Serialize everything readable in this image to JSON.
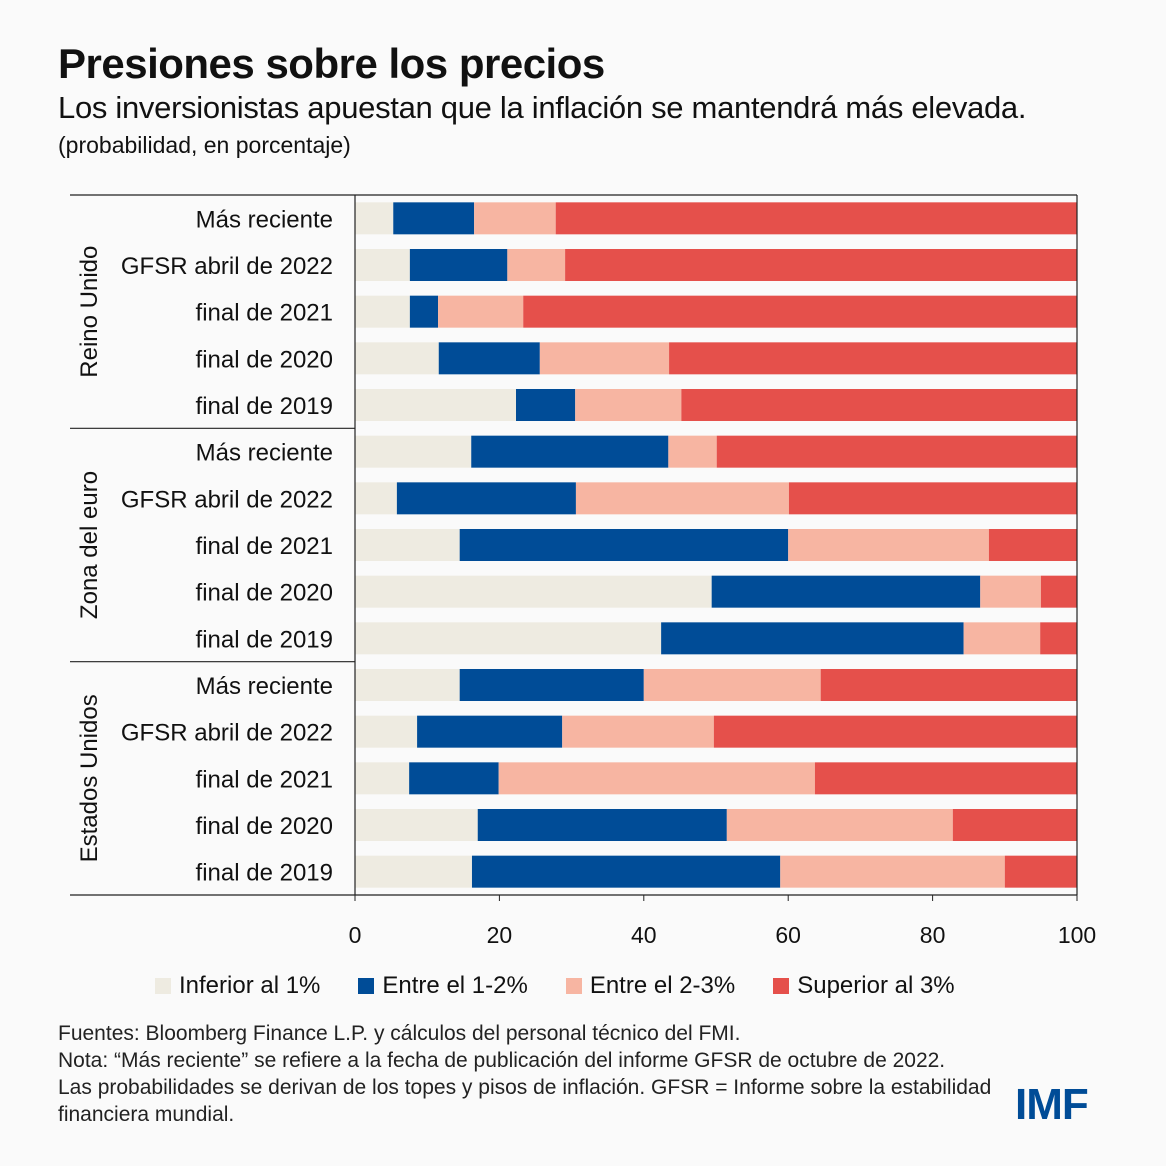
{
  "title": "Presiones sobre los precios",
  "subtitle": "Los inversionistas apuestan que la inflación se mantendrá más elevada.",
  "unit": "(probabilidad, en porcentaje)",
  "chart_data": {
    "type": "stacked-horizontal-bar",
    "xlim": [
      0,
      100
    ],
    "xticks": [
      "0",
      "20",
      "40",
      "60",
      "80",
      "100"
    ],
    "grid": false,
    "legend_placement": "bottom",
    "series": [
      {
        "name": "Inferior al 1%",
        "color": "#eeebe1"
      },
      {
        "name": "Entre el 1-2%",
        "color": "#004c97"
      },
      {
        "name": "Entre el 2-3%",
        "color": "#f7b5a2"
      },
      {
        "name": "Superior al 3%",
        "color": "#e5504b"
      }
    ],
    "groups": [
      {
        "name": "Reino Unido",
        "rows": [
          {
            "label": "Más reciente",
            "values": [
              5.3,
              11.2,
              11.3,
              72.2
            ]
          },
          {
            "label": "GFSR abril de 2022",
            "values": [
              7.6,
              13.5,
              8.0,
              70.9
            ]
          },
          {
            "label": "final de 2021",
            "values": [
              7.6,
              3.9,
              11.8,
              76.7
            ]
          },
          {
            "label": "final de 2020",
            "values": [
              11.6,
              14.0,
              17.9,
              56.5
            ]
          },
          {
            "label": "final de 2019",
            "values": [
              22.3,
              8.2,
              14.7,
              54.8
            ]
          }
        ]
      },
      {
        "name": "Zona del euro",
        "rows": [
          {
            "label": "Más reciente",
            "values": [
              16.1,
              27.3,
              6.7,
              49.9
            ]
          },
          {
            "label": "GFSR abril de 2022",
            "values": [
              5.8,
              24.8,
              29.5,
              39.9
            ]
          },
          {
            "label": "final de 2021",
            "values": [
              14.5,
              45.5,
              27.8,
              12.2
            ]
          },
          {
            "label": "final de 2020",
            "values": [
              49.4,
              37.2,
              8.4,
              5.0
            ]
          },
          {
            "label": "final de 2019",
            "values": [
              42.4,
              41.9,
              10.6,
              5.1
            ]
          }
        ]
      },
      {
        "name": "Estados Unidos",
        "rows": [
          {
            "label": "Más reciente",
            "values": [
              14.5,
              25.5,
              24.5,
              35.5
            ]
          },
          {
            "label": "GFSR abril de 2022",
            "values": [
              8.6,
              20.1,
              21.0,
              50.3
            ]
          },
          {
            "label": "final de 2021",
            "values": [
              7.5,
              12.4,
              43.8,
              36.3
            ]
          },
          {
            "label": "final de 2020",
            "values": [
              17.0,
              34.5,
              31.3,
              17.2
            ]
          },
          {
            "label": "final de 2019",
            "values": [
              16.2,
              42.7,
              31.1,
              10.0
            ]
          }
        ]
      }
    ]
  },
  "notes": [
    "Fuentes: Bloomberg Finance L.P. y cálculos del personal técnico del FMI.",
    "Nota: “Más reciente” se refiere a la fecha de publicación del informe GFSR de octubre de 2022.",
    "Las probabilidades se derivan de los topes y pisos de inflación. GFSR = Informe sobre la estabilidad financiera mundial."
  ],
  "logo": "IMF"
}
